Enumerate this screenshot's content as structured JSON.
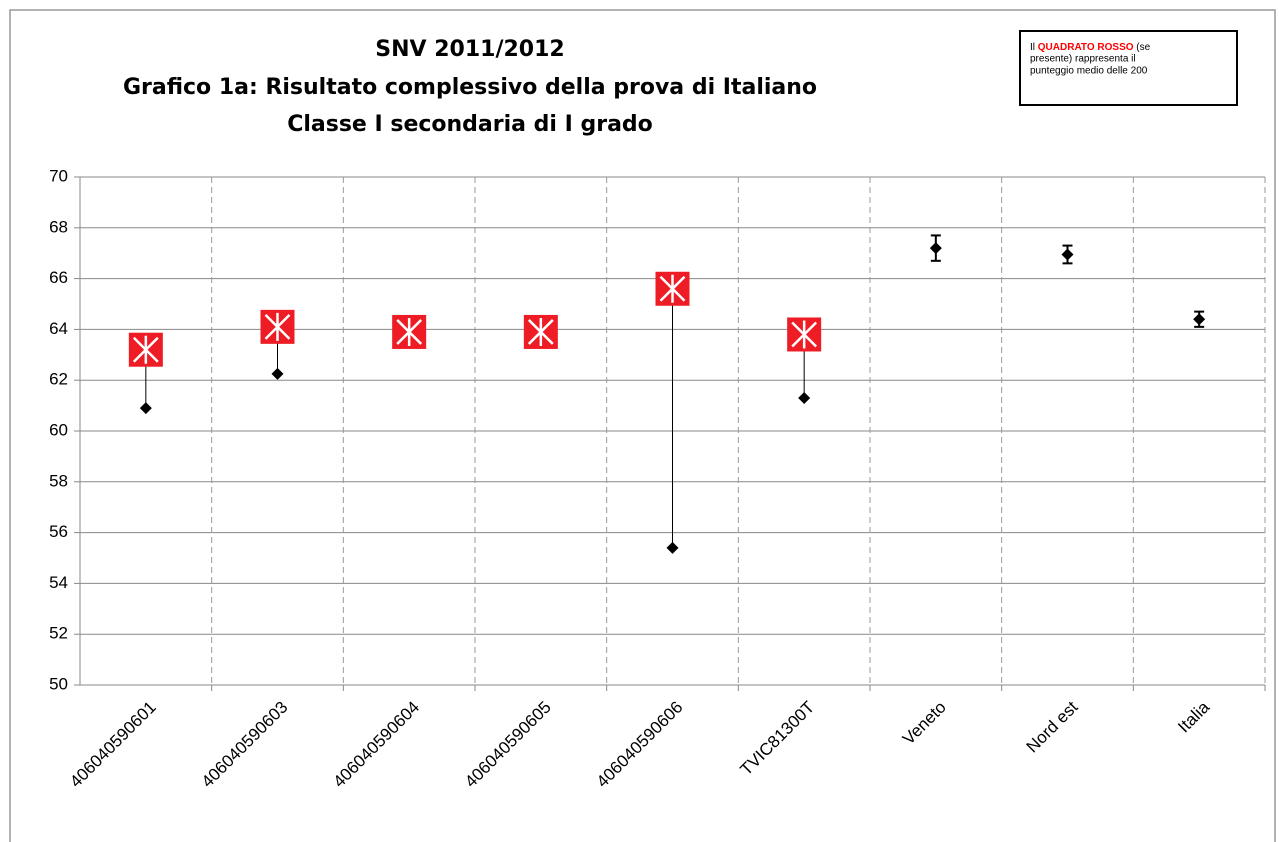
{
  "chart_data": {
    "type": "scatter",
    "title": [
      "SNV 2011/2012",
      "Grafico 1a: Risultato complessivo della prova di Italiano",
      "Classe I secondaria di I grado"
    ],
    "annotation": [
      "Il ",
      "QUADRATO  ROSSO",
      " (se",
      "presente) rappresenta il",
      "punteggio medio delle 200"
    ],
    "annotation_highlight_color": "#ff0000",
    "categories": [
      "406040590601",
      "406040590603",
      "406040590604",
      "406040590605",
      "406040590606",
      "TVIC81300T",
      "Veneto",
      "Nord est",
      "Italia"
    ],
    "series": [
      {
        "marker": "square",
        "color": "#ee1c25",
        "values": [
          63.2,
          64.1,
          63.9,
          63.9,
          65.6,
          63.8,
          null,
          null,
          null
        ]
      },
      {
        "marker": "diamond",
        "color": "#000000",
        "values": [
          60.9,
          62.25,
          null,
          null,
          55.4,
          61.3,
          67.2,
          66.95,
          64.4
        ],
        "errors": [
          null,
          null,
          null,
          null,
          null,
          null,
          0.5,
          0.35,
          0.3
        ]
      }
    ],
    "ylim": [
      50,
      70
    ],
    "yticks": [
      50,
      52,
      54,
      56,
      58,
      60,
      62,
      64,
      66,
      68,
      70
    ],
    "grid": true
  }
}
